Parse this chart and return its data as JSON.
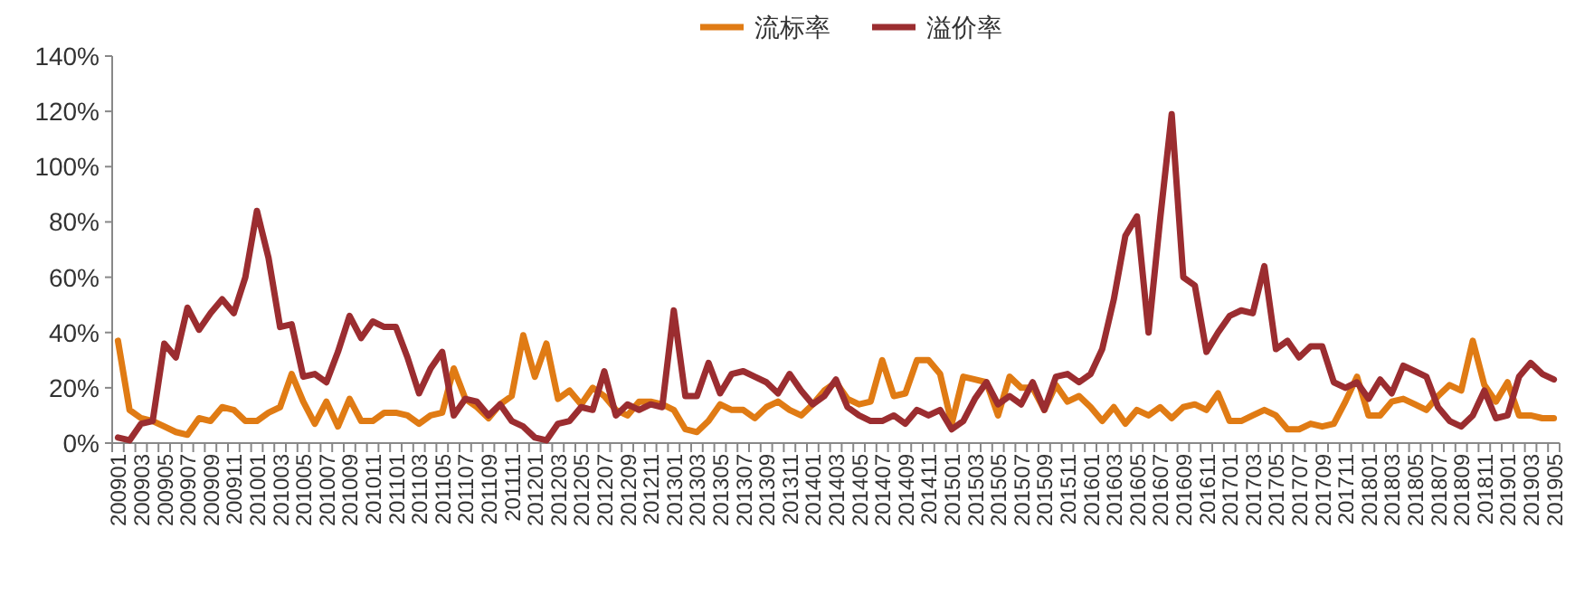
{
  "chart_data": {
    "type": "line",
    "legend": "top",
    "grid": false,
    "line_style": "solid",
    "marker": "none",
    "ylim": [
      0,
      140
    ],
    "yticks": [
      {
        "value": 0,
        "label": "0%"
      },
      {
        "value": 20,
        "label": "20%"
      },
      {
        "value": 40,
        "label": "40%"
      },
      {
        "value": 60,
        "label": "60%"
      },
      {
        "value": 80,
        "label": "80%"
      },
      {
        "value": 100,
        "label": "100%"
      },
      {
        "value": 120,
        "label": "120%"
      },
      {
        "value": 140,
        "label": "140%"
      }
    ],
    "categories": [
      "200901",
      null,
      "200903",
      null,
      "200905",
      null,
      "200907",
      null,
      "200909",
      null,
      "200911",
      null,
      "201001",
      null,
      "201003",
      null,
      "201005",
      null,
      "201007",
      null,
      "201009",
      null,
      "201011",
      null,
      "201101",
      null,
      "201103",
      null,
      "201105",
      null,
      "201107",
      null,
      "201109",
      null,
      "201111",
      null,
      "201201",
      null,
      "201203",
      null,
      "201205",
      null,
      "201207",
      null,
      "201209",
      null,
      "201211",
      null,
      "201301",
      null,
      "201303",
      null,
      "201305",
      null,
      "201307",
      null,
      "201309",
      null,
      "201311",
      null,
      "201401",
      null,
      "201403",
      null,
      "201405",
      null,
      "201407",
      null,
      "201409",
      null,
      "201411",
      null,
      "201501",
      null,
      "201503",
      null,
      "201505",
      null,
      "201507",
      null,
      "201509",
      null,
      "201511",
      null,
      "201601",
      null,
      "201603",
      null,
      "201605",
      null,
      "201607",
      null,
      "201609",
      null,
      "201611",
      null,
      "201701",
      null,
      "201703",
      null,
      "201705",
      null,
      "201707",
      null,
      "201709",
      null,
      "201711",
      null,
      "201801",
      null,
      "201803",
      null,
      "201805",
      null,
      "201807",
      null,
      "201809",
      null,
      "201811",
      null,
      "201901",
      null,
      "201903",
      null,
      "201905"
    ],
    "series": [
      {
        "name": "流标率",
        "color": "#e07b14",
        "values": [
          37,
          12,
          9,
          8,
          6,
          4,
          3,
          9,
          8,
          13,
          12,
          8,
          8,
          11,
          13,
          25,
          15,
          7,
          15,
          6,
          16,
          8,
          8,
          11,
          11,
          10,
          7,
          10,
          11,
          27,
          16,
          13,
          9,
          14,
          17,
          39,
          24,
          36,
          16,
          19,
          14,
          20,
          17,
          12,
          10,
          15,
          15,
          14,
          12,
          5,
          4,
          8,
          14,
          12,
          12,
          9,
          13,
          15,
          12,
          10,
          14,
          19,
          22,
          16,
          14,
          15,
          30,
          17,
          18,
          30,
          30,
          25,
          7,
          24,
          23,
          22,
          10,
          24,
          20,
          20,
          12,
          21,
          15,
          17,
          13,
          8,
          13,
          7,
          12,
          10,
          13,
          9,
          13,
          14,
          12,
          18,
          8,
          8,
          10,
          12,
          10,
          5,
          5,
          7,
          6,
          7,
          15,
          24,
          10,
          10,
          15,
          16,
          14,
          12,
          17,
          21,
          19,
          37,
          21,
          15,
          22,
          10,
          10,
          9,
          9
        ]
      },
      {
        "name": "溢价率",
        "color": "#9b2d30",
        "values": [
          2,
          1,
          7,
          8,
          36,
          31,
          49,
          41,
          47,
          52,
          47,
          60,
          84,
          67,
          42,
          43,
          24,
          25,
          22,
          33,
          46,
          38,
          44,
          42,
          42,
          31,
          18,
          27,
          33,
          10,
          16,
          15,
          10,
          14,
          8,
          6,
          2,
          1,
          7,
          8,
          13,
          12,
          26,
          10,
          14,
          12,
          14,
          13,
          48,
          17,
          17,
          29,
          18,
          25,
          26,
          24,
          22,
          18,
          25,
          19,
          14,
          17,
          23,
          13,
          10,
          8,
          8,
          10,
          7,
          12,
          10,
          12,
          5,
          8,
          16,
          22,
          14,
          17,
          14,
          22,
          12,
          24,
          25,
          22,
          25,
          34,
          52,
          75,
          82,
          40,
          81,
          119,
          60,
          57,
          33,
          40,
          46,
          48,
          47,
          64,
          34,
          37,
          31,
          35,
          35,
          22,
          20,
          22,
          16,
          23,
          18,
          28,
          26,
          24,
          13,
          8,
          6,
          10,
          19,
          9,
          10,
          24,
          29,
          25,
          23
        ]
      }
    ]
  }
}
